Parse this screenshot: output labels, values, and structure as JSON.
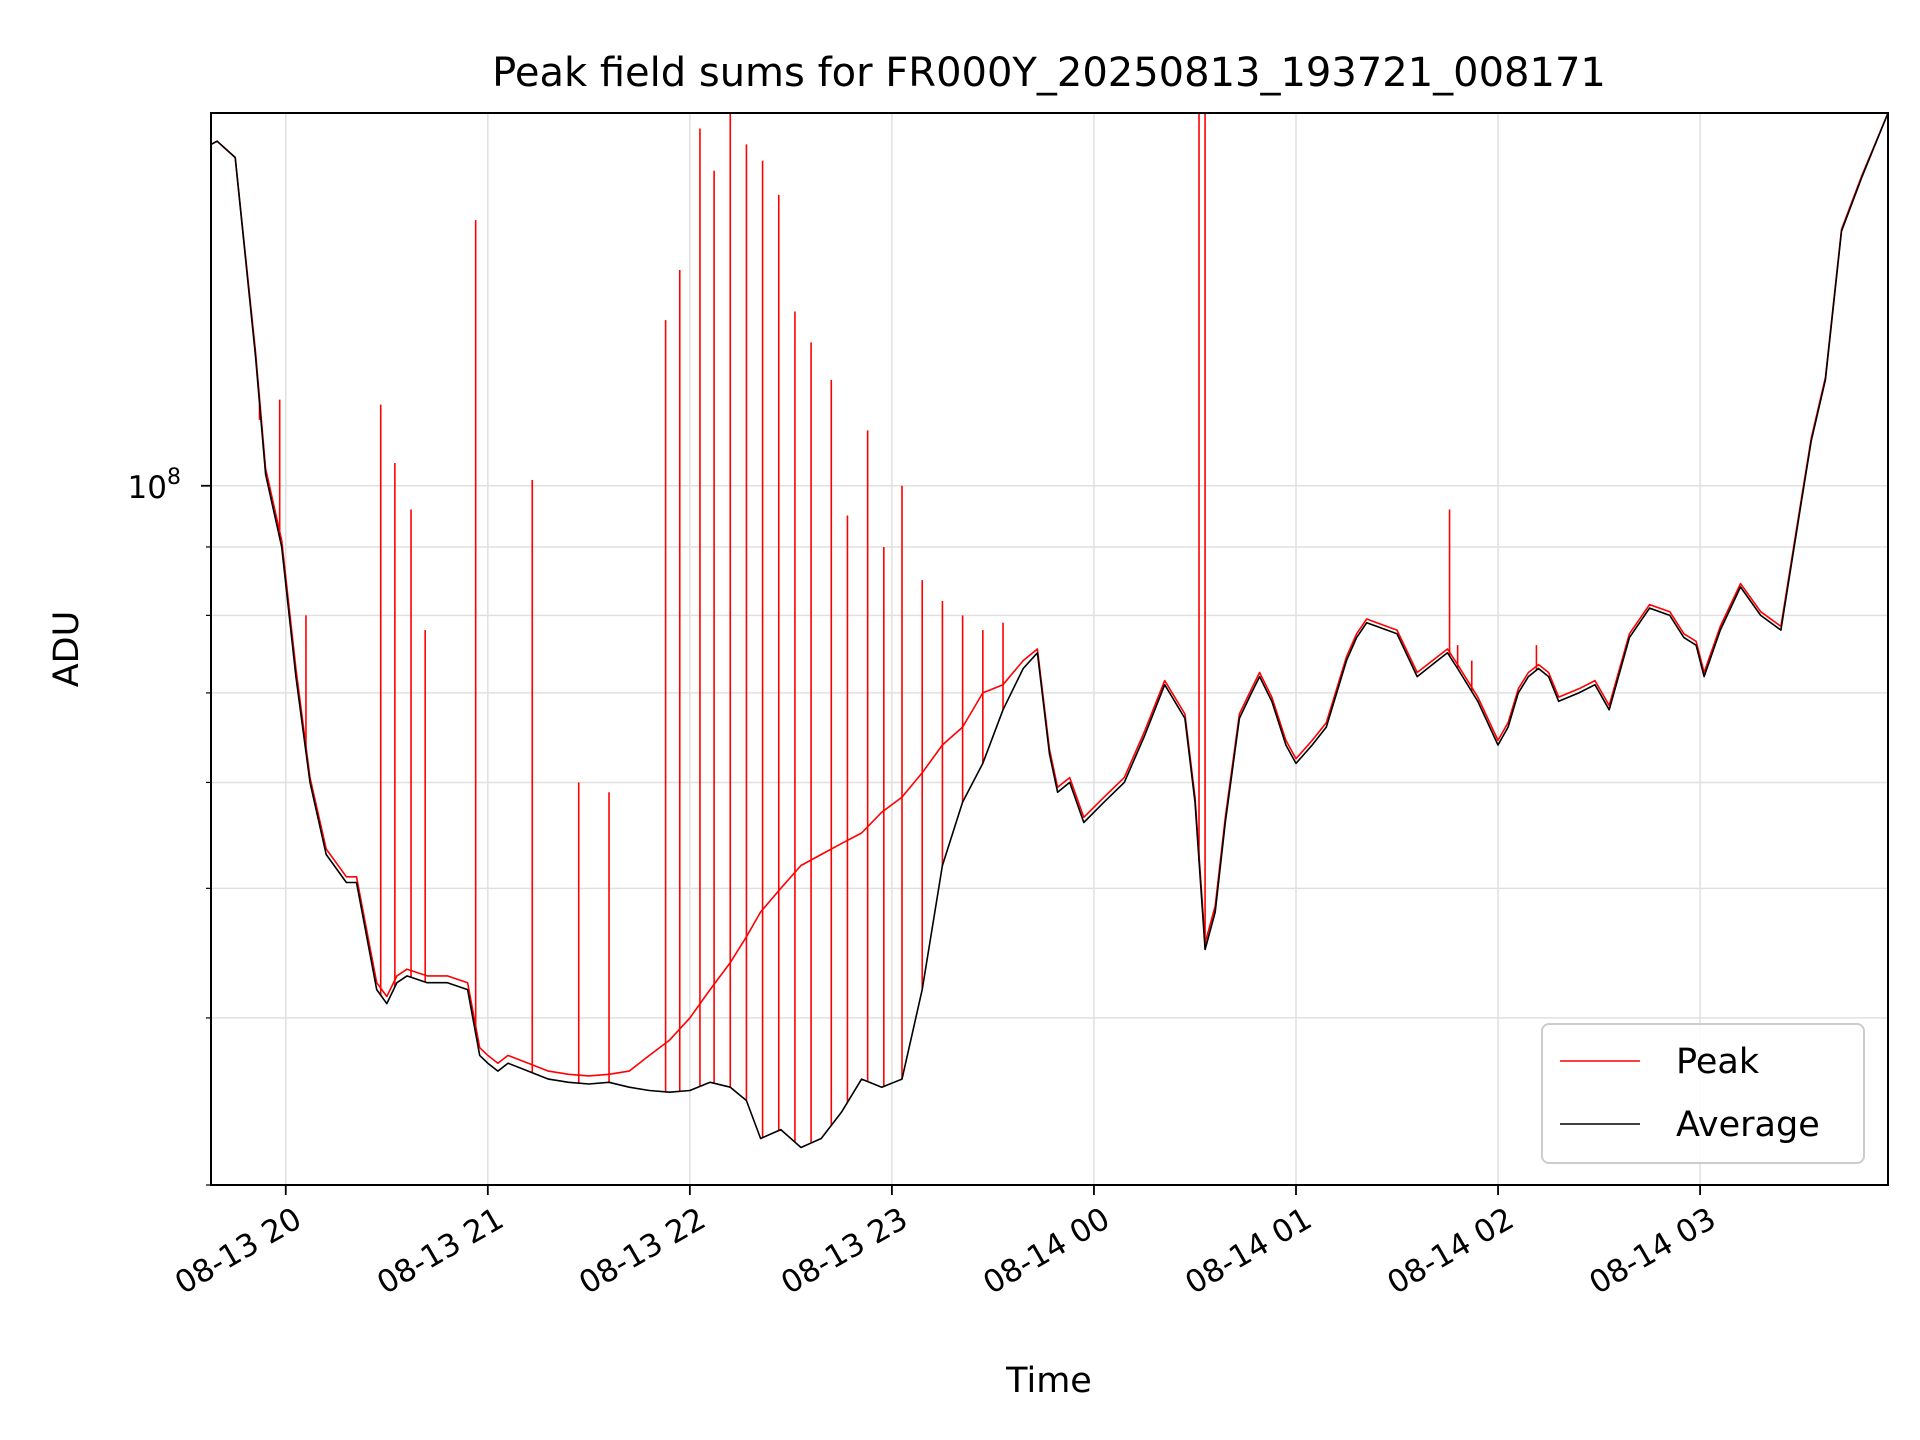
{
  "chart_data": {
    "type": "line",
    "title": "Peak field sums for FR000Y_20250813_193721_008171",
    "xlabel": "Time",
    "ylabel": "ADU",
    "yscale": "log",
    "ylim": [
      30000000,
      190000000
    ],
    "xlim": [
      19.63,
      27.93
    ],
    "grid": true,
    "legend_position": "lower right",
    "x_ticks": [
      {
        "value": 20,
        "label": "08-13 20"
      },
      {
        "value": 21,
        "label": "08-13 21"
      },
      {
        "value": 22,
        "label": "08-13 22"
      },
      {
        "value": 23,
        "label": "08-13 23"
      },
      {
        "value": 24,
        "label": "08-14 00"
      },
      {
        "value": 25,
        "label": "08-14 01"
      },
      {
        "value": 26,
        "label": "08-14 02"
      },
      {
        "value": 27,
        "label": "08-14 03"
      }
    ],
    "y_ticks": [
      {
        "value": 100000000,
        "base": "10",
        "exp": "8"
      }
    ],
    "series": [
      {
        "name": "Average",
        "color": "#000000",
        "x": [
          19.63,
          19.66,
          19.75,
          19.85,
          19.9,
          19.98,
          20.05,
          20.12,
          20.2,
          20.3,
          20.35,
          20.45,
          20.5,
          20.55,
          20.6,
          20.7,
          20.8,
          20.9,
          20.96,
          21.0,
          21.05,
          21.1,
          21.2,
          21.3,
          21.4,
          21.5,
          21.6,
          21.7,
          21.8,
          21.9,
          22.0,
          22.1,
          22.2,
          22.28,
          22.35,
          22.45,
          22.55,
          22.65,
          22.75,
          22.85,
          22.95,
          23.05,
          23.15,
          23.25,
          23.35,
          23.45,
          23.55,
          23.65,
          23.72,
          23.78,
          23.82,
          23.88,
          23.95,
          24.05,
          24.15,
          24.25,
          24.35,
          24.45,
          24.5,
          24.55,
          24.6,
          24.65,
          24.72,
          24.78,
          24.82,
          24.88,
          24.95,
          25.0,
          25.08,
          25.15,
          25.25,
          25.3,
          25.35,
          25.4,
          25.5,
          25.6,
          25.7,
          25.75,
          25.8,
          25.9,
          26.0,
          26.05,
          26.1,
          26.15,
          26.2,
          26.25,
          26.3,
          26.4,
          26.48,
          26.55,
          26.65,
          26.75,
          26.85,
          26.92,
          26.98,
          27.02,
          27.1,
          27.2,
          27.3,
          27.4,
          27.5,
          27.55,
          27.62,
          27.7,
          27.8,
          27.93
        ],
        "values": [
          180000000,
          181000000,
          176000000,
          125000000,
          102000000,
          90000000,
          72000000,
          60000000,
          53000000,
          50500000,
          50500000,
          42000000,
          41000000,
          42500000,
          43000000,
          42500000,
          42500000,
          42000000,
          37500000,
          37000000,
          36500000,
          37000000,
          36500000,
          36000000,
          35800000,
          35700000,
          35800000,
          35500000,
          35300000,
          35200000,
          35300000,
          35800000,
          35500000,
          34700000,
          32500000,
          33000000,
          32000000,
          32500000,
          34000000,
          36000000,
          35500000,
          36000000,
          42000000,
          52000000,
          58000000,
          62000000,
          68000000,
          73000000,
          75000000,
          63000000,
          59000000,
          60000000,
          56000000,
          58000000,
          60000000,
          65000000,
          71000000,
          67000000,
          58000000,
          45000000,
          48000000,
          56000000,
          67000000,
          70000000,
          72000000,
          69000000,
          64000000,
          62000000,
          64000000,
          66000000,
          74000000,
          77000000,
          79000000,
          78500000,
          77500000,
          72000000,
          74000000,
          75000000,
          73000000,
          69000000,
          64000000,
          66000000,
          70000000,
          72000000,
          73000000,
          72000000,
          69000000,
          70000000,
          71000000,
          68000000,
          77000000,
          81000000,
          80000000,
          77000000,
          76000000,
          72000000,
          78000000,
          84000000,
          80000000,
          78000000,
          97000000,
          108000000,
          120000000,
          155000000,
          170000000,
          190000000
        ]
      },
      {
        "name": "Peak",
        "color": "#ff0000",
        "x": [
          19.63,
          19.66,
          19.75,
          19.85,
          19.9,
          19.98,
          20.05,
          20.12,
          20.2,
          20.3,
          20.35,
          20.45,
          20.5,
          20.55,
          20.6,
          20.7,
          20.8,
          20.9,
          20.96,
          21.0,
          21.05,
          21.1,
          21.2,
          21.3,
          21.4,
          21.5,
          21.6,
          21.7,
          21.8,
          21.9,
          22.0,
          22.1,
          22.2,
          22.28,
          22.35,
          22.45,
          22.55,
          22.65,
          22.75,
          22.85,
          22.95,
          23.05,
          23.15,
          23.25,
          23.35,
          23.45,
          23.55,
          23.65,
          23.72,
          23.78,
          23.82,
          23.88,
          23.95,
          24.05,
          24.15,
          24.25,
          24.35,
          24.45,
          24.5,
          24.55,
          24.6,
          24.65,
          24.72,
          24.78,
          24.82,
          24.88,
          24.95,
          25.0,
          25.08,
          25.15,
          25.25,
          25.3,
          25.35,
          25.4,
          25.5,
          25.6,
          25.7,
          25.75,
          25.8,
          25.9,
          26.0,
          26.05,
          26.1,
          26.15,
          26.2,
          26.25,
          26.3,
          26.4,
          26.48,
          26.55,
          26.65,
          26.75,
          26.85,
          26.92,
          26.98,
          27.02,
          27.1,
          27.2,
          27.3,
          27.4,
          27.5,
          27.55,
          27.62,
          27.7,
          27.8,
          27.93
        ],
        "values": [
          180000000,
          181000000,
          176000000,
          126000000,
          103000000,
          91000000,
          73000000,
          60500000,
          53500000,
          51000000,
          51000000,
          42500000,
          41500000,
          43000000,
          43500000,
          43000000,
          43000000,
          42500000,
          38000000,
          37500000,
          37000000,
          37500000,
          37000000,
          36500000,
          36300000,
          36200000,
          36300000,
          36500000,
          37500000,
          38500000,
          40000000,
          42000000,
          44000000,
          46000000,
          48000000,
          50000000,
          52000000,
          53000000,
          54000000,
          55000000,
          57000000,
          58500000,
          61000000,
          64000000,
          66000000,
          70000000,
          71000000,
          74000000,
          75500000,
          63500000,
          59500000,
          60500000,
          56500000,
          58500000,
          60500000,
          65500000,
          71500000,
          67500000,
          58500000,
          45500000,
          48500000,
          56500000,
          67500000,
          70500000,
          72500000,
          69500000,
          64500000,
          62500000,
          64500000,
          66500000,
          74500000,
          77500000,
          79500000,
          79000000,
          78000000,
          72500000,
          74500000,
          75500000,
          73500000,
          69500000,
          64500000,
          66500000,
          70500000,
          72500000,
          73500000,
          72500000,
          69500000,
          70500000,
          71500000,
          68500000,
          77500000,
          81500000,
          80500000,
          77500000,
          76500000,
          72500000,
          78500000,
          84500000,
          80500000,
          78500000,
          97500000,
          108500000,
          120500000,
          155500000,
          170500000,
          190000000
        ]
      }
    ],
    "peak_spikes": [
      {
        "x": 19.87,
        "value": 112000000
      },
      {
        "x": 19.97,
        "value": 116000000
      },
      {
        "x": 20.1,
        "value": 80000000
      },
      {
        "x": 20.47,
        "value": 115000000
      },
      {
        "x": 20.54,
        "value": 104000000
      },
      {
        "x": 20.62,
        "value": 96000000
      },
      {
        "x": 20.69,
        "value": 78000000
      },
      {
        "x": 20.94,
        "value": 158000000
      },
      {
        "x": 21.22,
        "value": 101000000
      },
      {
        "x": 21.45,
        "value": 60000000
      },
      {
        "x": 21.6,
        "value": 59000000
      },
      {
        "x": 21.88,
        "value": 133000000
      },
      {
        "x": 21.95,
        "value": 145000000
      },
      {
        "x": 22.05,
        "value": 185000000
      },
      {
        "x": 22.12,
        "value": 172000000
      },
      {
        "x": 22.2,
        "value": 190000000
      },
      {
        "x": 22.28,
        "value": 180000000
      },
      {
        "x": 22.36,
        "value": 175000000
      },
      {
        "x": 22.44,
        "value": 165000000
      },
      {
        "x": 22.52,
        "value": 135000000
      },
      {
        "x": 22.6,
        "value": 128000000
      },
      {
        "x": 22.7,
        "value": 120000000
      },
      {
        "x": 22.78,
        "value": 95000000
      },
      {
        "x": 22.88,
        "value": 110000000
      },
      {
        "x": 22.96,
        "value": 90000000
      },
      {
        "x": 23.05,
        "value": 100000000
      },
      {
        "x": 23.15,
        "value": 85000000
      },
      {
        "x": 23.25,
        "value": 82000000
      },
      {
        "x": 23.35,
        "value": 80000000
      },
      {
        "x": 23.45,
        "value": 78000000
      },
      {
        "x": 23.55,
        "value": 79000000
      },
      {
        "x": 24.52,
        "value": 190000000
      },
      {
        "x": 24.55,
        "value": 190000000
      },
      {
        "x": 25.76,
        "value": 96000000
      },
      {
        "x": 25.8,
        "value": 76000000
      },
      {
        "x": 25.87,
        "value": 74000000
      },
      {
        "x": 26.19,
        "value": 76000000
      }
    ],
    "legend": [
      {
        "label": "Peak",
        "color": "#ff0000"
      },
      {
        "label": "Average",
        "color": "#000000"
      }
    ]
  }
}
